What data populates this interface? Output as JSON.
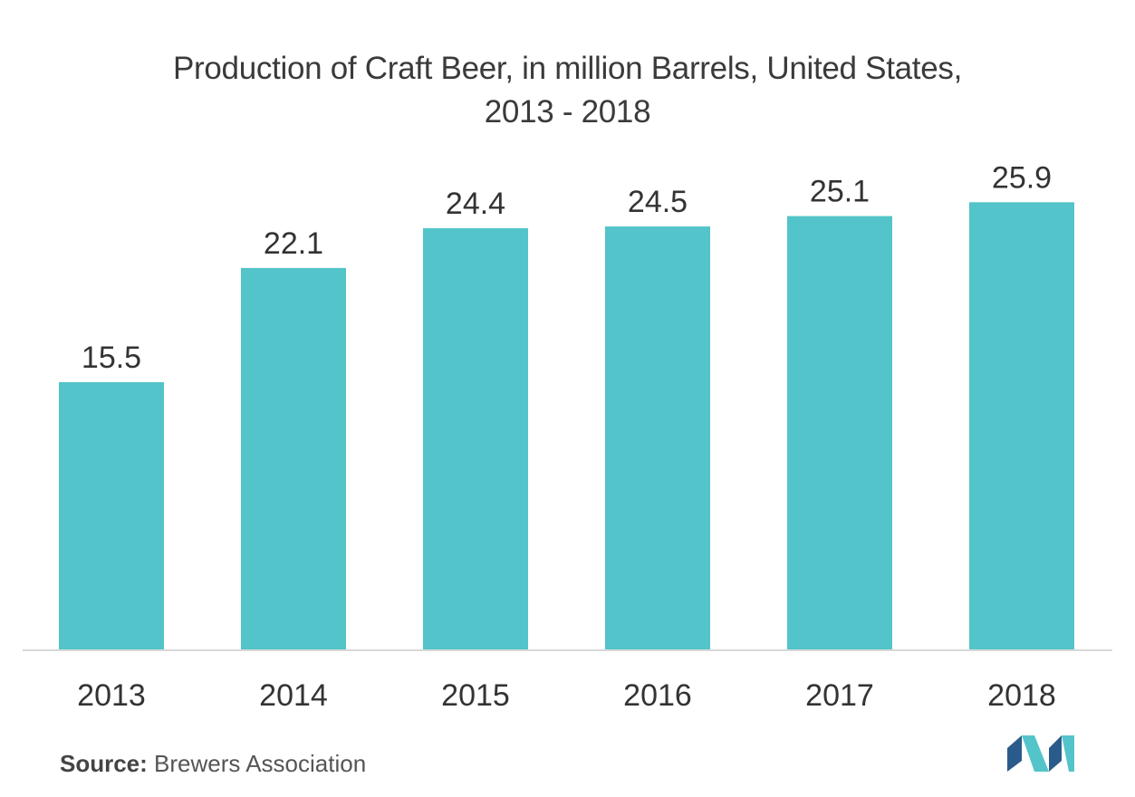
{
  "title_line1": "Production of Craft Beer, in million Barrels, United States,",
  "title_line2": "2013 - 2018",
  "source_label": "Source:",
  "source_text": "Brewers Association",
  "logo_icon": "mordor-logo-icon",
  "colors": {
    "bar": "#53c4c9",
    "axis": "#d9d9d9",
    "text": "#333333",
    "logo_dark": "#2b5b8a",
    "logo_light": "#53c4c9"
  },
  "chart_data": {
    "type": "bar",
    "title": "Production of Craft Beer, in million Barrels, United States, 2013 - 2018",
    "categories": [
      "2013",
      "2014",
      "2015",
      "2016",
      "2017",
      "2018"
    ],
    "values": [
      15.5,
      22.1,
      24.4,
      24.5,
      25.1,
      25.9
    ],
    "value_labels": [
      "15.5",
      "22.1",
      "24.4",
      "24.5",
      "25.1",
      "25.9"
    ],
    "xlabel": "",
    "ylabel": "",
    "ylim": [
      0,
      30
    ],
    "grid": false,
    "legend": "none",
    "data_labels": "above-bars"
  }
}
